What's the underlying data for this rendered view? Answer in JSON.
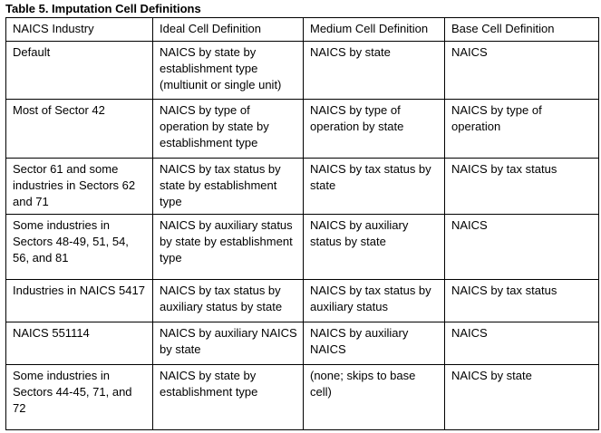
{
  "caption": "Table 5. Imputation Cell Definitions",
  "table": {
    "headers": [
      "NAICS Industry",
      "Ideal Cell Definition",
      "Medium Cell Definition",
      "Base Cell Definition"
    ],
    "rows": [
      [
        "Default",
        "NAICS by state by establishment type (multiunit or single unit)",
        "NAICS by state",
        "NAICS"
      ],
      [
        "Most of Sector 42",
        "NAICS by type of operation by state by establishment type",
        "NAICS by type of operation by state",
        "NAICS by type of operation"
      ],
      [
        "Sector 61 and some industries in Sectors 62 and 71",
        "NAICS by tax status by state by establishment type",
        "NAICS by tax status by state",
        "NAICS by tax status"
      ],
      [
        "Some industries in Sectors 48-49, 51, 54, 56, and 81",
        "NAICS by auxiliary status by state by establishment type",
        "NAICS by auxiliary status by state",
        "NAICS"
      ],
      [
        "Industries in NAICS 5417",
        "NAICS by tax status by auxiliary status by state",
        "NAICS by tax status by auxiliary status",
        "NAICS by tax status"
      ],
      [
        "NAICS 551114",
        "NAICS by auxiliary NAICS by state",
        "NAICS by auxiliary NAICS",
        "NAICS"
      ],
      [
        "Some industries in Sectors 44-45, 71, and 72",
        "NAICS by state by establishment type",
        "(none; skips to base cell)",
        "NAICS by state"
      ]
    ]
  }
}
